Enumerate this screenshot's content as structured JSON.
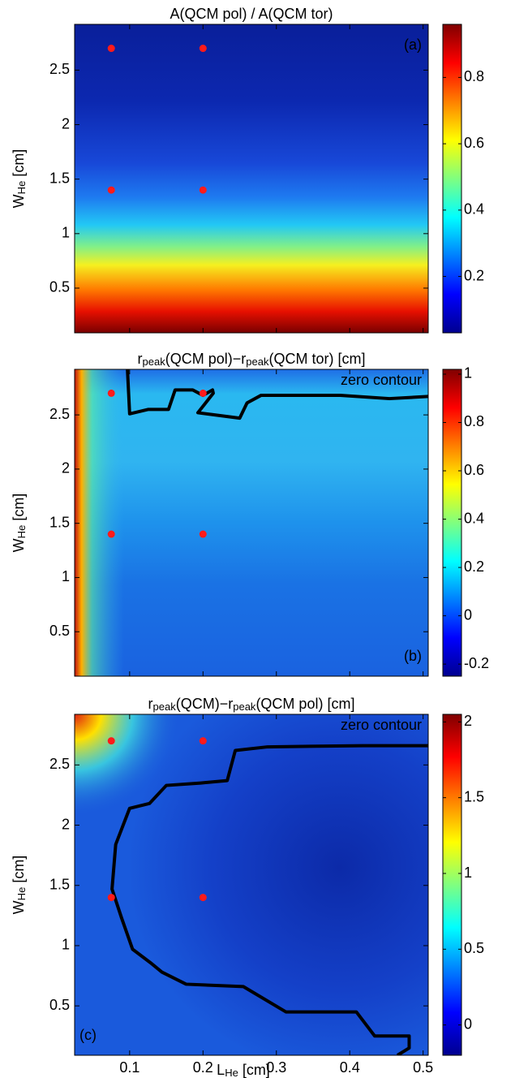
{
  "chart_data": [
    {
      "type": "contour",
      "title": [
        {
          "text": "A(QCM pol) / A(QCM tor)"
        }
      ],
      "ylabel": [
        {
          "text": "W"
        },
        {
          "text": "He",
          "sub": true
        },
        {
          "text": " [cm]"
        }
      ],
      "xlim": [
        0.025,
        0.507
      ],
      "ylim": [
        0.09,
        2.92
      ],
      "xticks": [
        0.1,
        0.2,
        0.3,
        0.4,
        0.5
      ],
      "xticklabels": false,
      "yticks": [
        0.5,
        1,
        1.5,
        2,
        2.5
      ],
      "panel_label": "(a)",
      "panel_label_corner": "top-right",
      "points": {
        "x": [
          0.075,
          0.2,
          0.075,
          0.2
        ],
        "y": [
          2.7,
          2.7,
          1.4,
          1.4
        ],
        "color": "#ff1a1a"
      },
      "series": [],
      "colorbar": {
        "colormap": "jet",
        "clim": [
          0.03,
          0.96
        ],
        "ticks": [
          0.2,
          0.4,
          0.6,
          0.8
        ]
      }
    },
    {
      "type": "contour",
      "title": [
        {
          "text": "r"
        },
        {
          "text": "peak",
          "sub": true
        },
        {
          "text": "(QCM pol)−r"
        },
        {
          "text": "peak",
          "sub": true
        },
        {
          "text": "(QCM tor) [cm]"
        }
      ],
      "ylabel": [
        {
          "text": "W"
        },
        {
          "text": "He",
          "sub": true
        },
        {
          "text": " [cm]"
        }
      ],
      "xlim": [
        0.025,
        0.507
      ],
      "ylim": [
        0.09,
        2.92
      ],
      "xticks": [
        0.1,
        0.2,
        0.3,
        0.4,
        0.5
      ],
      "xticklabels": false,
      "yticks": [
        0.5,
        1,
        1.5,
        2,
        2.5
      ],
      "panel_label": "(b)",
      "panel_label_corner": "bottom-right",
      "points": {
        "x": [
          0.075,
          0.2,
          0.075,
          0.2
        ],
        "y": [
          2.7,
          2.7,
          1.4,
          1.4
        ],
        "color": "#ff1a1a"
      },
      "series": [
        {
          "name": "zero contour",
          "color": "#000000",
          "x": [
            0.097,
            0.1,
            0.125,
            0.153,
            0.162,
            0.186,
            0.2,
            0.213,
            0.214,
            0.193,
            0.25,
            0.26,
            0.279,
            0.387,
            0.454,
            0.507
          ],
          "y": [
            2.92,
            2.51,
            2.55,
            2.55,
            2.73,
            2.73,
            2.68,
            2.73,
            2.7,
            2.52,
            2.47,
            2.61,
            2.68,
            2.68,
            2.65,
            2.67
          ]
        }
      ],
      "colorbar": {
        "colormap": "jet",
        "clim": [
          -0.25,
          1.02
        ],
        "ticks": [
          -0.2,
          0,
          0.2,
          0.4,
          0.6,
          0.8,
          1
        ]
      }
    },
    {
      "type": "contour",
      "title": [
        {
          "text": "r"
        },
        {
          "text": "peak",
          "sub": true
        },
        {
          "text": "(QCM)−r"
        },
        {
          "text": "peak",
          "sub": true
        },
        {
          "text": "(QCM pol) [cm]"
        }
      ],
      "ylabel": [
        {
          "text": "W"
        },
        {
          "text": "He",
          "sub": true
        },
        {
          "text": " [cm]"
        }
      ],
      "xlabel": [
        {
          "text": "L"
        },
        {
          "text": "He",
          "sub": true
        },
        {
          "text": " [cm]"
        }
      ],
      "xlim": [
        0.025,
        0.507
      ],
      "ylim": [
        0.09,
        2.92
      ],
      "xticks": [
        0.1,
        0.2,
        0.3,
        0.4,
        0.5
      ],
      "yticks": [
        0.5,
        1,
        1.5,
        2,
        2.5
      ],
      "panel_label": "(c)",
      "panel_label_corner": "bottom-left",
      "points": {
        "x": [
          0.075,
          0.2,
          0.075,
          0.2
        ],
        "y": [
          2.7,
          2.7,
          1.4,
          1.4
        ],
        "color": "#ff1a1a"
      },
      "series": [
        {
          "name": "zero contour",
          "color": "#000000",
          "x": [
            0.507,
            0.418,
            0.288,
            0.244,
            0.233,
            0.197,
            0.15,
            0.127,
            0.1,
            0.081,
            0.076,
            0.089,
            0.104,
            0.128,
            0.144,
            0.177,
            0.255,
            0.313,
            0.409,
            0.434,
            0.481,
            0.481,
            0.465
          ],
          "y": [
            2.66,
            2.66,
            2.65,
            2.62,
            2.37,
            2.35,
            2.33,
            2.18,
            2.14,
            1.84,
            1.47,
            1.23,
            0.97,
            0.86,
            0.78,
            0.68,
            0.66,
            0.45,
            0.45,
            0.25,
            0.25,
            0.15,
            0.09
          ]
        }
      ],
      "colorbar": {
        "colormap": "jet",
        "clim": [
          -0.2,
          2.05
        ],
        "ticks": [
          0,
          0.5,
          1,
          1.5,
          2
        ]
      }
    }
  ]
}
